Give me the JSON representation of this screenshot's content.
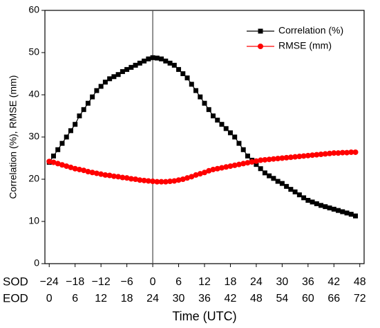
{
  "chart_data": {
    "type": "line",
    "ylabel": "Correlation (%), RMSE (mm)",
    "xlabel": "Time (UTC)",
    "xrow_label": "SOD",
    "x2row_label": "EOD",
    "xlim": [
      -25,
      49
    ],
    "ylim": [
      0,
      60
    ],
    "yticks": [
      0,
      10,
      20,
      30,
      40,
      50,
      60
    ],
    "xticks": [
      {
        "value": -24,
        "label": "−24"
      },
      {
        "value": -18,
        "label": "−18"
      },
      {
        "value": -12,
        "label": "−12"
      },
      {
        "value": -6,
        "label": "−6"
      },
      0,
      6,
      12,
      18,
      24,
      30,
      36,
      42,
      48
    ],
    "x2ticks": [
      {
        "value": -24,
        "label": "0"
      },
      {
        "value": -18,
        "label": "6"
      },
      {
        "value": -12,
        "label": "12"
      },
      {
        "value": -6,
        "label": "18"
      },
      {
        "value": 0,
        "label": "24"
      },
      {
        "value": 6,
        "label": "30"
      },
      {
        "value": 12,
        "label": "36"
      },
      {
        "value": 18,
        "label": "42"
      },
      {
        "value": 24,
        "label": "48"
      },
      {
        "value": 30,
        "label": "54"
      },
      {
        "value": 36,
        "label": "60"
      },
      {
        "value": 42,
        "label": "66"
      },
      {
        "value": 48,
        "label": "72"
      }
    ],
    "vline": 0,
    "legend": "upper right",
    "x": [
      -24,
      -23,
      -22,
      -21,
      -20,
      -19,
      -18,
      -17,
      -16,
      -15,
      -14,
      -13,
      -12,
      -11,
      -10,
      -9,
      -8,
      -7,
      -6,
      -5,
      -4,
      -3,
      -2,
      -1,
      0,
      1,
      2,
      3,
      4,
      5,
      6,
      7,
      8,
      9,
      10,
      11,
      12,
      13,
      14,
      15,
      16,
      17,
      18,
      19,
      20,
      21,
      22,
      23,
      24,
      25,
      26,
      27,
      28,
      29,
      30,
      31,
      32,
      33,
      34,
      35,
      36,
      37,
      38,
      39,
      40,
      41,
      42,
      43,
      44,
      45,
      46,
      47
    ],
    "series": [
      {
        "name": "Correlation (%)",
        "color": "#000000",
        "marker": "square",
        "values": [
          24.0,
          25.5,
          27,
          28.5,
          30,
          31.5,
          33,
          35,
          36.5,
          38,
          39.5,
          41,
          42,
          43,
          43.8,
          44.3,
          44.8,
          45.5,
          46,
          46.5,
          47,
          47.5,
          48,
          48.5,
          48.8,
          48.7,
          48.5,
          48,
          47.5,
          47,
          46,
          45,
          44,
          42.5,
          41,
          39.5,
          38,
          36.5,
          35,
          34,
          33,
          32,
          31,
          30,
          28.5,
          27,
          25.5,
          24.5,
          23.5,
          22.5,
          21.5,
          20.8,
          20.2,
          19.5,
          19,
          18.3,
          17.6,
          17,
          16.3,
          15.6,
          15,
          14.6,
          14.2,
          13.8,
          13.5,
          13.2,
          12.9,
          12.6,
          12.3,
          12,
          11.7,
          11.3
        ]
      },
      {
        "name": "RMSE (mm)",
        "color": "#ff0000",
        "marker": "circle",
        "values": [
          24.2,
          24,
          23.7,
          23.4,
          23.1,
          22.8,
          22.5,
          22.3,
          22.1,
          21.8,
          21.6,
          21.4,
          21.2,
          21,
          20.9,
          20.7,
          20.6,
          20.4,
          20.3,
          20.1,
          20,
          19.8,
          19.7,
          19.6,
          19.5,
          19.4,
          19.4,
          19.4,
          19.5,
          19.6,
          19.8,
          20,
          20.3,
          20.6,
          21,
          21.3,
          21.6,
          22,
          22.3,
          22.5,
          22.7,
          22.9,
          23.1,
          23.3,
          23.5,
          23.7,
          23.9,
          24.1,
          24.3,
          24.5,
          24.6,
          24.7,
          24.8,
          24.9,
          25,
          25.1,
          25.2,
          25.3,
          25.4,
          25.5,
          25.6,
          25.7,
          25.8,
          25.9,
          26,
          26.1,
          26.2,
          26.2,
          26.3,
          26.3,
          26.4,
          26.4
        ]
      }
    ]
  }
}
